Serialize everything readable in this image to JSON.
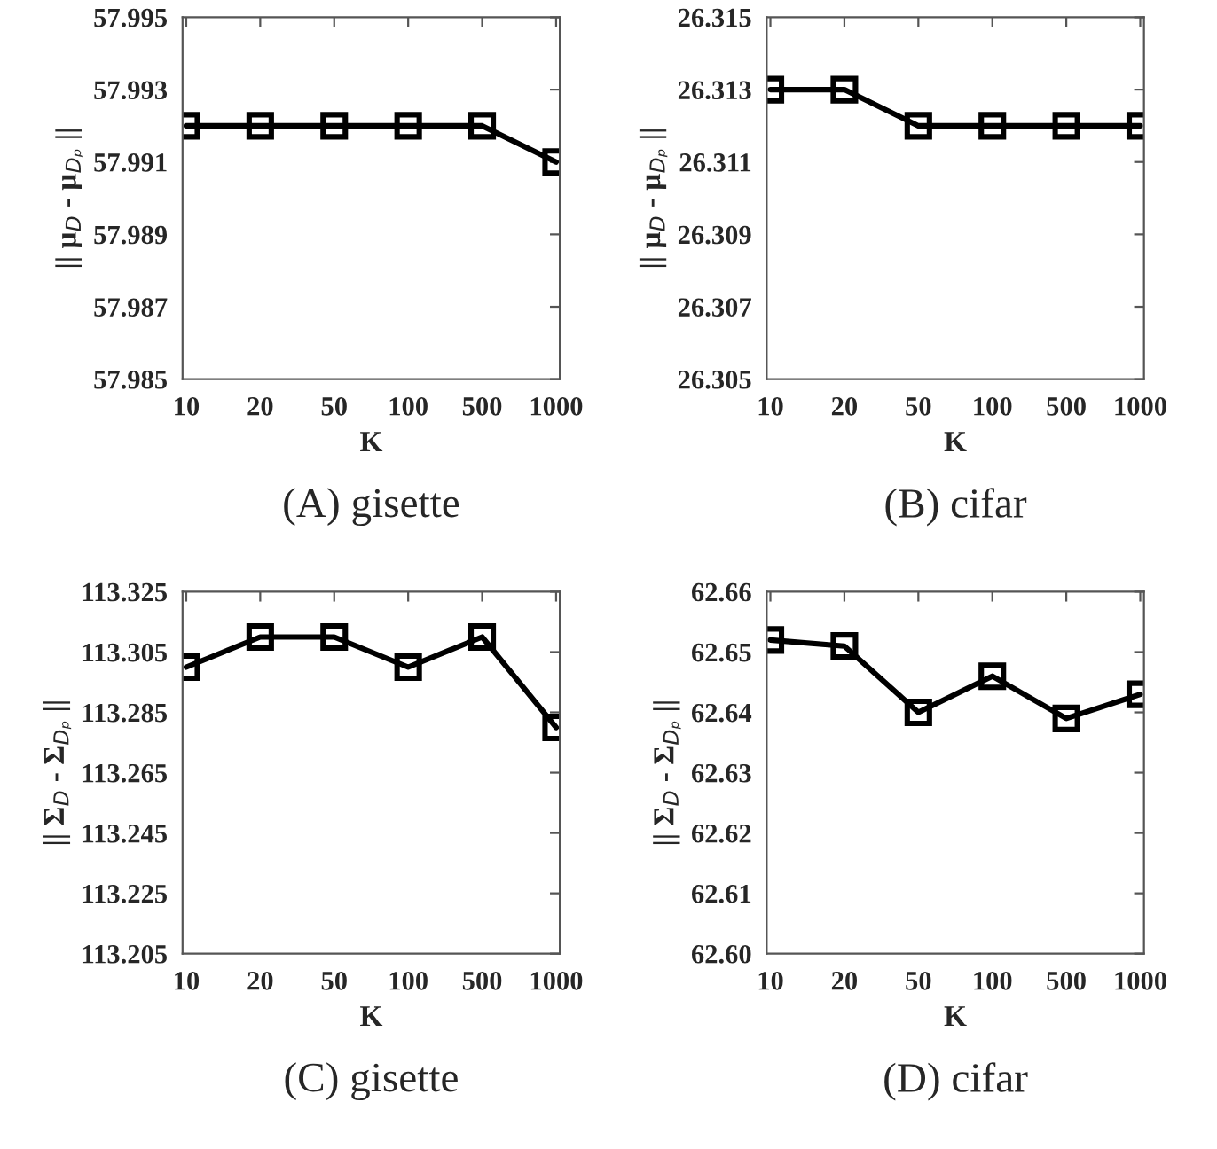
{
  "chart_data": [
    {
      "type": "line",
      "xlabel": "K",
      "ylabel": "|| μ$_{D}$ - μ$_{Dₚ}$ ||",
      "annotations": [
        "(A) gisette"
      ],
      "categories": [
        "10",
        "20",
        "50",
        "100",
        "500",
        "1000"
      ],
      "series": [
        {
          "color": "#000000",
          "values": [
            57.992,
            57.992,
            57.992,
            57.992,
            57.992,
            57.991
          ]
        }
      ],
      "ylim": [
        57.985,
        57.995
      ],
      "yticks": [
        57.985,
        57.987,
        57.989,
        57.991,
        57.993,
        57.995
      ],
      "marker": "square"
    },
    {
      "type": "line",
      "xlabel": "K",
      "ylabel": "|| μ$_{D}$ - μ$_{Dₚ}$ ||",
      "annotations": [
        "(B) cifar"
      ],
      "categories": [
        "10",
        "20",
        "50",
        "100",
        "500",
        "1000"
      ],
      "series": [
        {
          "color": "#000000",
          "values": [
            26.313,
            26.313,
            26.312,
            26.312,
            26.312,
            26.312
          ]
        }
      ],
      "ylim": [
        26.305,
        26.315
      ],
      "yticks": [
        26.305,
        26.307,
        26.309,
        26.311,
        26.313,
        26.315
      ],
      "marker": "square"
    },
    {
      "type": "line",
      "xlabel": "K",
      "ylabel": "|| Σ$_{D}$ - Σ$_{Dₚ}$ ||",
      "annotations": [
        "(C) gisette"
      ],
      "categories": [
        "10",
        "20",
        "50",
        "100",
        "500",
        "1000"
      ],
      "series": [
        {
          "color": "#000000",
          "values": [
            113.3,
            113.31,
            113.31,
            113.3,
            113.31,
            113.28
          ]
        }
      ],
      "ylim": [
        113.205,
        113.325
      ],
      "yticks": [
        113.205,
        113.225,
        113.245,
        113.265,
        113.285,
        113.305,
        113.325
      ],
      "marker": "square"
    },
    {
      "type": "line",
      "xlabel": "K",
      "ylabel": "|| Σ$_{D}$ - Σ$_{Dₚ}$ ||",
      "annotations": [
        "(D) cifar"
      ],
      "categories": [
        "10",
        "20",
        "50",
        "100",
        "500",
        "1000"
      ],
      "series": [
        {
          "color": "#000000",
          "values": [
            62.652,
            62.651,
            62.64,
            62.646,
            62.639,
            62.643
          ]
        }
      ],
      "ylim": [
        62.6,
        62.66
      ],
      "yticks": [
        {
          "value": 62.6,
          "label": "62.60"
        },
        62.61,
        62.62,
        62.63,
        62.64,
        62.65,
        62.66
      ],
      "marker": "square"
    }
  ]
}
